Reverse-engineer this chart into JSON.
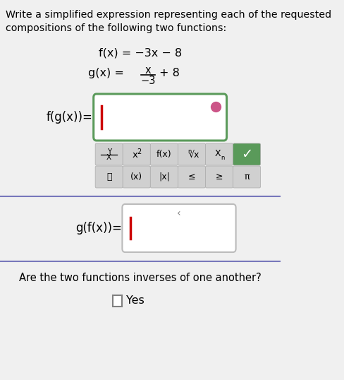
{
  "bg_color": "#f0f0f0",
  "title_text": "Write a simplified expression representing each of the requested\ncompositions of the following two functions:",
  "fx_text": "f(x) = −3x − 8",
  "fgx_label": "f(g(x))=",
  "gfx_label": "g(f(x))=",
  "inverse_question": "Are the two functions inverses of one another?",
  "yes_text": "Yes",
  "box1_color_border": "#5a9a5a",
  "box2_color_border": "#bbbbbb",
  "cursor_color": "#cc0000",
  "dot_color": "#cc5588",
  "checkmark_bg": "#5a9a5a",
  "button_bg": "#d0d0d0",
  "separator_color": "#7777bb"
}
